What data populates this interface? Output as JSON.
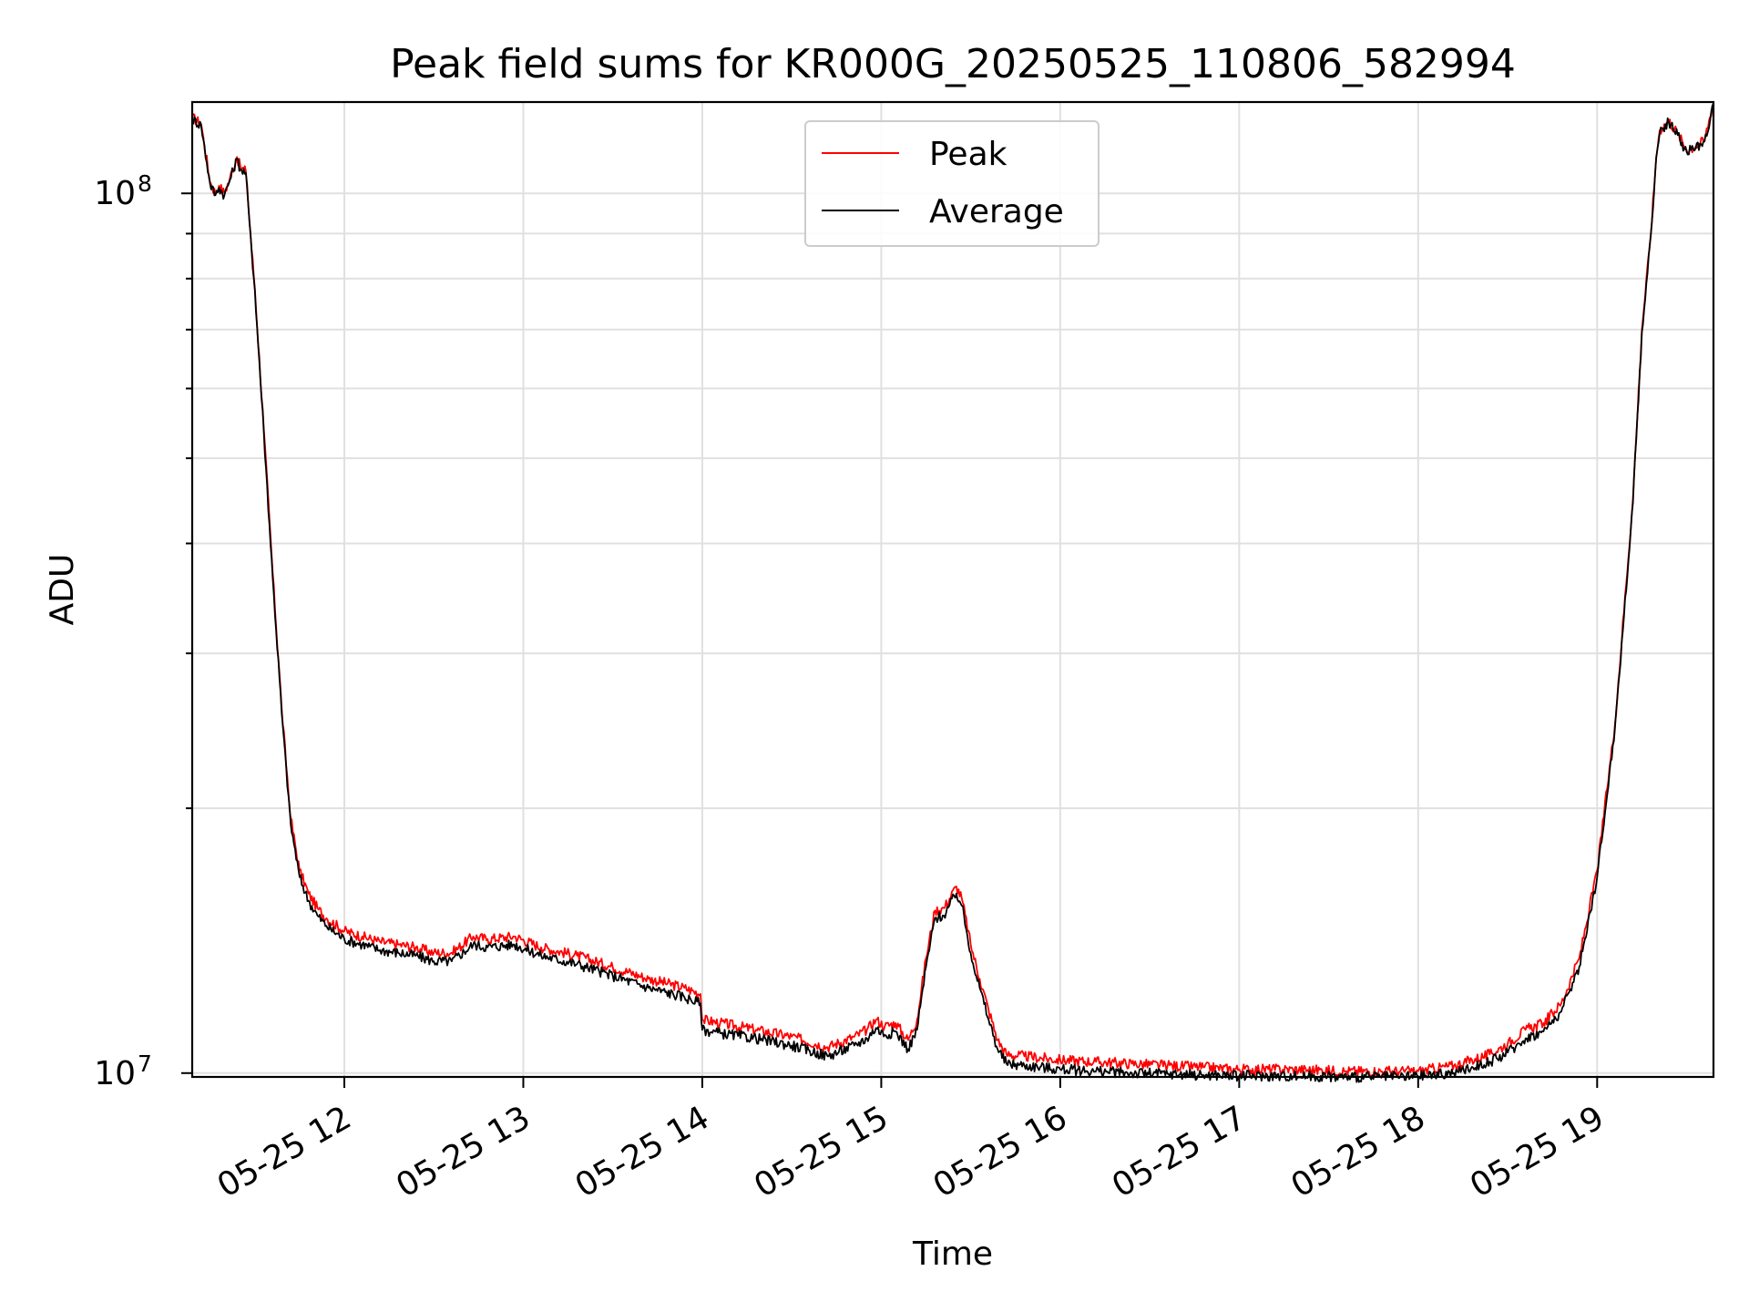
{
  "chart_data": {
    "type": "line",
    "title": "Peak field sums for KR000G_20250525_110806_582994",
    "xlabel": "Time",
    "ylabel": "ADU",
    "yscale": "log",
    "ylim": [
      9900000,
      127000000
    ],
    "xlim": [
      11.15,
      19.65
    ],
    "x_units": "hour of day, 2025-05-25",
    "grid": true,
    "legend_position": "upper-center",
    "x_ticks": [
      {
        "value": 12,
        "label": "05-25 12"
      },
      {
        "value": 13,
        "label": "05-25 13"
      },
      {
        "value": 14,
        "label": "05-25 14"
      },
      {
        "value": 15,
        "label": "05-25 15"
      },
      {
        "value": 16,
        "label": "05-25 16"
      },
      {
        "value": 17,
        "label": "05-25 17"
      },
      {
        "value": 18,
        "label": "05-25 18"
      },
      {
        "value": 19,
        "label": "05-25 19"
      }
    ],
    "y_ticks": [
      {
        "value": 10000000,
        "base": "10",
        "exp": "7"
      },
      {
        "value": 100000000,
        "base": "10",
        "exp": "8"
      }
    ],
    "series": [
      {
        "name": "Peak",
        "color": "#ff0000",
        "x": [
          11.15,
          11.2,
          11.25,
          11.28,
          11.3,
          11.33,
          11.36,
          11.4,
          11.42,
          11.45,
          11.47,
          11.5,
          11.55,
          11.6,
          11.65,
          11.7,
          11.75,
          11.8,
          11.85,
          11.9,
          12.0,
          12.1,
          12.2,
          12.3,
          12.4,
          12.5,
          12.6,
          12.72,
          12.8,
          12.95,
          13.1,
          13.3,
          13.5,
          13.7,
          13.9,
          13.99,
          14.0,
          14.1,
          14.3,
          14.5,
          14.7,
          14.85,
          14.92,
          14.97,
          15.02,
          15.08,
          15.15,
          15.2,
          15.25,
          15.3,
          15.35,
          15.42,
          15.45,
          15.5,
          15.55,
          15.6,
          15.65,
          15.7,
          15.8,
          16.0,
          16.2,
          16.4,
          16.6,
          16.8,
          17.0,
          17.3,
          17.6,
          17.9,
          18.0,
          18.2,
          18.4,
          18.5,
          18.6,
          18.7,
          18.8,
          18.9,
          19.0,
          19.1,
          19.2,
          19.25,
          19.3,
          19.33,
          19.35,
          19.4,
          19.45,
          19.5,
          19.55,
          19.6,
          19.65
        ],
        "y": [
          122000000,
          120000000,
          103000000,
          100000000,
          102000000,
          100000000,
          104000000,
          110000000,
          107000000,
          106000000,
          93000000,
          78000000,
          54000000,
          37000000,
          26000000,
          19500000,
          17000000,
          16000000,
          15400000,
          15000000,
          14500000,
          14300000,
          14100000,
          14000000,
          13900000,
          13700000,
          13700000,
          14300000,
          14200000,
          14300000,
          13900000,
          13600000,
          13200000,
          12800000,
          12500000,
          12300000,
          11500000,
          11400000,
          11200000,
          11000000,
          10700000,
          11000000,
          11200000,
          11500000,
          11300000,
          11400000,
          10900000,
          11500000,
          13500000,
          15300000,
          15400000,
          16300000,
          15800000,
          14000000,
          12800000,
          11800000,
          10900000,
          10500000,
          10450000,
          10350000,
          10300000,
          10250000,
          10200000,
          10150000,
          10100000,
          10100000,
          10050000,
          10050000,
          10050000,
          10200000,
          10500000,
          10800000,
          11200000,
          11400000,
          12000000,
          13500000,
          17000000,
          25000000,
          45000000,
          70000000,
          90000000,
          110000000,
          118000000,
          121000000,
          117000000,
          112000000,
          113000000,
          115000000,
          127000000
        ]
      },
      {
        "name": "Average",
        "color": "#000000",
        "x": [
          11.15,
          11.2,
          11.25,
          11.28,
          11.3,
          11.33,
          11.36,
          11.4,
          11.42,
          11.45,
          11.47,
          11.5,
          11.55,
          11.6,
          11.65,
          11.7,
          11.75,
          11.8,
          11.85,
          11.9,
          12.0,
          12.1,
          12.2,
          12.3,
          12.4,
          12.5,
          12.6,
          12.72,
          12.8,
          12.95,
          13.1,
          13.3,
          13.5,
          13.7,
          13.9,
          13.99,
          14.0,
          14.1,
          14.3,
          14.5,
          14.7,
          14.85,
          14.92,
          14.97,
          15.02,
          15.08,
          15.15,
          15.2,
          15.25,
          15.3,
          15.35,
          15.42,
          15.45,
          15.5,
          15.55,
          15.6,
          15.65,
          15.7,
          15.8,
          16.0,
          16.2,
          16.4,
          16.6,
          16.8,
          17.0,
          17.3,
          17.6,
          17.9,
          18.0,
          18.2,
          18.4,
          18.5,
          18.6,
          18.7,
          18.8,
          18.9,
          19.0,
          19.1,
          19.2,
          19.25,
          19.3,
          19.33,
          19.35,
          19.4,
          19.45,
          19.5,
          19.55,
          19.6,
          19.65
        ],
        "y": [
          121500000,
          119500000,
          102500000,
          99500000,
          101500000,
          99500000,
          103500000,
          109500000,
          106500000,
          105500000,
          92500000,
          77500000,
          53500000,
          36500000,
          25700000,
          19200000,
          16700000,
          15700000,
          15100000,
          14700000,
          14200000,
          14000000,
          13800000,
          13700000,
          13600000,
          13400000,
          13400000,
          14000000,
          13900000,
          14000000,
          13600000,
          13300000,
          12900000,
          12500000,
          12200000,
          12000000,
          11200000,
          11100000,
          10950000,
          10750000,
          10450000,
          10750000,
          10950000,
          11250000,
          11050000,
          11150000,
          10650000,
          11200000,
          13200000,
          15000000,
          15100000,
          16000000,
          15500000,
          13700000,
          12500000,
          11500000,
          10650000,
          10250000,
          10200000,
          10100000,
          10050000,
          10000000,
          9980000,
          9950000,
          9930000,
          9920000,
          9900000,
          9900000,
          9920000,
          10000000,
          10300000,
          10550000,
          10950000,
          11150000,
          11750000,
          13200000,
          16700000,
          24700000,
          44500000,
          69500000,
          89500000,
          109500000,
          117500000,
          120500000,
          116500000,
          111500000,
          112500000,
          114500000,
          126500000
        ]
      }
    ]
  }
}
